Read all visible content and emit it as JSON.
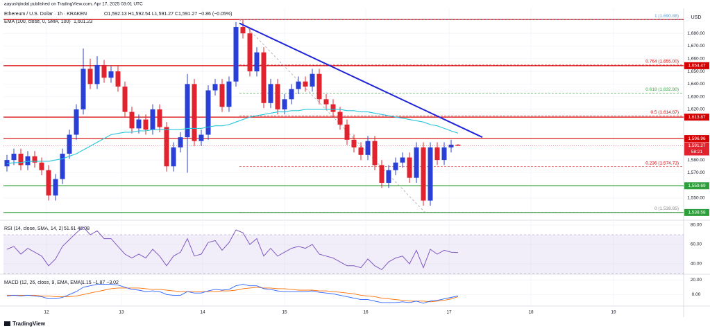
{
  "chart_data": {
    "type": "candlestick",
    "publisher": "aayushjindal published on TradingView.com, Apr 17, 2025 03:01 UTC",
    "title": "Ethereum / U.S. Dollar · 1h · KRAKEN",
    "ohlc_text": "O1,592.13 H1,592.54 L1,591.27 C1,591.27 −0.86 (−0.05%)",
    "ema_text": "EMA (100, close, 0, SMA, 100)",
    "ema_value_text": "1,601.23",
    "currency": "USD",
    "brand": "TradingView",
    "up_color": "#2a3fd6",
    "down_color": "#e0232e",
    "ema_color": "#26c6da",
    "open": [
      1575,
      1580,
      1585,
      1576,
      1583,
      1578,
      1572,
      1552,
      1565,
      1585,
      1600,
      1620,
      1652,
      1640,
      1655,
      1645,
      1650,
      1638,
      1618,
      1605,
      1612,
      1604,
      1620,
      1606,
      1575,
      1590,
      1598,
      1640,
      1595,
      1600,
      1635,
      1640,
      1622,
      1642,
      1685,
      1680,
      1650,
      1665,
      1625,
      1640,
      1620,
      1628,
      1636,
      1642,
      1638,
      1648,
      1628,
      1624,
      1618,
      1608,
      1596,
      1590,
      1584,
      1595,
      1576,
      1562,
      1572,
      1578,
      1582,
      1566,
      1590,
      1548,
      1590,
      1580,
      1590,
      1592.13
    ],
    "high": [
      1584,
      1589,
      1589,
      1587,
      1587,
      1582,
      1576,
      1569,
      1589,
      1604,
      1624,
      1668,
      1660,
      1662,
      1659,
      1654,
      1654,
      1642,
      1622,
      1616,
      1616,
      1624,
      1624,
      1610,
      1594,
      1602,
      1648,
      1644,
      1604,
      1639,
      1644,
      1644,
      1646,
      1689,
      1690.88,
      1684,
      1669,
      1669,
      1644,
      1644,
      1632,
      1640,
      1646,
      1646,
      1652,
      1652,
      1632,
      1628,
      1622,
      1612,
      1600,
      1594,
      1599,
      1599,
      1580,
      1576,
      1582,
      1586,
      1586,
      1594,
      1594,
      1594,
      1594,
      1594,
      1596,
      1592.54
    ],
    "low": [
      1571,
      1576,
      1572,
      1572,
      1574,
      1568,
      1548,
      1548,
      1561,
      1581,
      1596,
      1616,
      1636,
      1636,
      1641,
      1641,
      1634,
      1614,
      1601,
      1601,
      1600,
      1600,
      1602,
      1571,
      1571,
      1586,
      1570,
      1591,
      1591,
      1596,
      1631,
      1618,
      1618,
      1638,
      1676,
      1646,
      1646,
      1621,
      1621,
      1616,
      1616,
      1624,
      1632,
      1634,
      1634,
      1624,
      1620,
      1614,
      1604,
      1592,
      1586,
      1580,
      1580,
      1572,
      1558,
      1558,
      1568,
      1574,
      1562,
      1562,
      1544,
      1544,
      1576,
      1576,
      1586,
      1591.27
    ],
    "close": [
      1580,
      1585,
      1576,
      1583,
      1578,
      1572,
      1552,
      1565,
      1585,
      1600,
      1620,
      1652,
      1640,
      1655,
      1645,
      1650,
      1638,
      1618,
      1605,
      1612,
      1604,
      1620,
      1606,
      1575,
      1590,
      1598,
      1640,
      1595,
      1600,
      1635,
      1640,
      1622,
      1642,
      1685,
      1680,
      1650,
      1665,
      1625,
      1640,
      1620,
      1628,
      1636,
      1642,
      1638,
      1648,
      1628,
      1624,
      1618,
      1608,
      1596,
      1590,
      1584,
      1595,
      1576,
      1562,
      1572,
      1578,
      1582,
      1566,
      1590,
      1548,
      1590,
      1580,
      1590,
      1592.13,
      1591.27
    ],
    "ema": [
      1577,
      1578,
      1578,
      1579,
      1579,
      1579,
      1579,
      1580,
      1581,
      1583,
      1585,
      1588,
      1591,
      1594,
      1597,
      1600,
      1601,
      1602,
      1602,
      1603,
      1603,
      1604,
      1604,
      1604,
      1604,
      1604,
      1605,
      1605,
      1605,
      1606,
      1607,
      1607,
      1608,
      1610,
      1612,
      1614,
      1615,
      1616,
      1617,
      1618,
      1618,
      1619,
      1619,
      1620,
      1620,
      1620,
      1620,
      1620,
      1620,
      1619,
      1619,
      1618,
      1618,
      1617,
      1616,
      1615,
      1614,
      1613,
      1612,
      1611,
      1610,
      1608,
      1607,
      1605,
      1603,
      1601.23
    ],
    "ylim": [
      1532.5,
      1696.5
    ],
    "yticks": [
      {
        "value": 1680,
        "label": "1,680.00"
      },
      {
        "value": 1670,
        "label": "1,670.00"
      },
      {
        "value": 1660,
        "label": "1,660.00"
      },
      {
        "value": 1650,
        "label": "1,650.00"
      },
      {
        "value": 1640,
        "label": "1,640.00"
      },
      {
        "value": 1630,
        "label": "1,630.00"
      },
      {
        "value": 1620,
        "label": "1,620.00"
      },
      {
        "value": 1580,
        "label": "1,580.00"
      },
      {
        "value": 1570,
        "label": "1,570.00"
      },
      {
        "value": 1550,
        "label": "1,550.00"
      }
    ],
    "xticks": [
      {
        "value": 5.7,
        "label": "12"
      },
      {
        "value": 16.5,
        "label": "13"
      },
      {
        "value": 28.2,
        "label": "14"
      },
      {
        "value": 40,
        "label": "15"
      },
      {
        "value": 51.7,
        "label": "16"
      },
      {
        "value": 63.7,
        "label": "17"
      },
      {
        "value": 75.5,
        "label": "18"
      },
      {
        "value": 87.4,
        "label": "19"
      }
    ],
    "xlim": [
      -0.5,
      97.5
    ],
    "levels": [
      {
        "value": 1690.88,
        "color": "#d50000"
      },
      {
        "value": 1654.47,
        "label": "1,654.47",
        "color": "#d50000"
      },
      {
        "value": 1613.87,
        "label": "1,613.87",
        "color": "#d50000"
      },
      {
        "value": 1596.96,
        "label": "1,596.96",
        "color": "#d50000"
      },
      {
        "value": 1559.69,
        "label": "1,559.69",
        "color": "#2e9e3a"
      },
      {
        "value": 1538.58,
        "label": "1,538.58",
        "color": "#2e9e3a"
      }
    ],
    "price_label": {
      "value": 1591.27,
      "label": "1,591.27",
      "timer": "58:21",
      "color": "#e0232e"
    },
    "fib": [
      {
        "value": 1690.88,
        "label": "1 (1,690.88)",
        "color": "#5b9bd5"
      },
      {
        "value": 1655.0,
        "label": "0.764 (1,655.00)",
        "color": "#d50000"
      },
      {
        "value": 1632.8,
        "label": "0.618 (1,632.80)",
        "color": "#2e9e3a"
      },
      {
        "value": 1614.87,
        "label": "0.5 (1,614.87)",
        "color": "#d50000"
      },
      {
        "value": 1574.73,
        "label": "0.236 (1,574.73)",
        "color": "#d50000"
      },
      {
        "value": 1538.85,
        "label": "0 (1,538.85)",
        "color": "#888888"
      }
    ],
    "trendline": {
      "values": [
        1688,
        1598
      ],
      "color": "#1e22d8"
    },
    "rsi": {
      "text": "RSI (14, close, SMA, 14, 2)",
      "value_text": "51.61  46.08",
      "color": "#7e57c2",
      "values": [
        55,
        58,
        50,
        56,
        52,
        48,
        38,
        45,
        58,
        65,
        72,
        78,
        70,
        74,
        66,
        66,
        58,
        50,
        46,
        50,
        46,
        55,
        48,
        38,
        48,
        52,
        66,
        48,
        50,
        62,
        64,
        54,
        62,
        75,
        72,
        60,
        66,
        48,
        56,
        48,
        52,
        56,
        58,
        56,
        60,
        50,
        48,
        46,
        42,
        38,
        38,
        36,
        45,
        38,
        34,
        42,
        46,
        48,
        40,
        54,
        36,
        55,
        50,
        54,
        52,
        51.61
      ],
      "band": [
        30,
        70
      ],
      "ylim": [
        30,
        85
      ],
      "yticks": [
        {
          "value": 80,
          "label": "80.00"
        },
        {
          "value": 60,
          "label": "60.00"
        },
        {
          "value": 40,
          "label": "40.00"
        }
      ]
    },
    "macd": {
      "text": "MACD (12, 26, close, 9, EMA, EMA)",
      "value_text": "1.15  −1.87  −3.02",
      "macd_color": "#2962ff",
      "signal_color": "#ff6d00",
      "macd": [
        -2,
        -1,
        -2,
        -1,
        -2,
        -3,
        -6,
        -6,
        -4,
        0,
        4,
        10,
        12,
        14,
        14,
        14,
        13,
        10,
        7,
        6,
        4,
        5,
        4,
        0,
        -1,
        -1,
        4,
        2,
        2,
        5,
        7,
        6,
        7,
        12,
        14,
        12,
        12,
        8,
        7,
        5,
        4,
        4,
        4,
        4,
        5,
        3,
        2,
        1,
        -1,
        -3,
        -5,
        -7,
        -7,
        -9,
        -11,
        -11,
        -11,
        -10,
        -11,
        -9,
        -12,
        -9,
        -8,
        -6,
        -4,
        -1.87
      ],
      "signal": [
        -1,
        -1,
        -1,
        -1,
        -1,
        -2,
        -2,
        -3,
        -3,
        -3,
        -2,
        0,
        2,
        4,
        6,
        8,
        9,
        9,
        9,
        9,
        8,
        7,
        7,
        6,
        5,
        4,
        4,
        4,
        4,
        4,
        4,
        5,
        5,
        6,
        8,
        9,
        10,
        9,
        9,
        8,
        8,
        7,
        6,
        6,
        6,
        5,
        5,
        4,
        3,
        2,
        1,
        -1,
        -2,
        -3,
        -5,
        -6,
        -7,
        -8,
        -9,
        -9,
        -9,
        -10,
        -9,
        -8,
        -6,
        -3.02
      ],
      "ylim": [
        -14,
        26
      ],
      "yticks": [
        {
          "value": 20,
          "label": "20.00"
        },
        {
          "value": 0,
          "label": "0.00"
        }
      ]
    }
  }
}
